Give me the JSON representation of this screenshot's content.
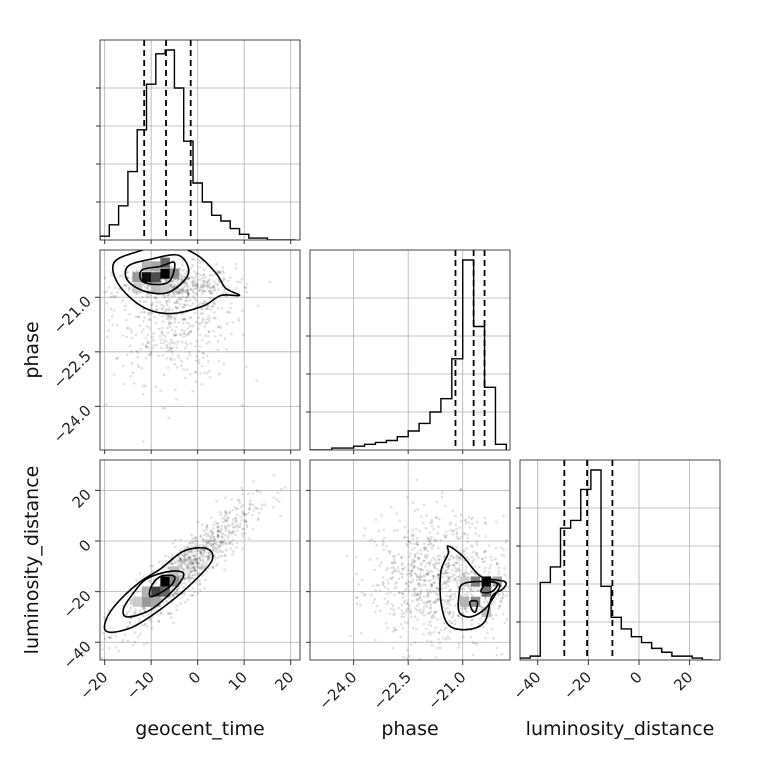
{
  "chart_data": {
    "type": "corner",
    "parameters": [
      "geocent_time",
      "phase",
      "luminosity_distance"
    ],
    "ranges": {
      "geocent_time": [
        -21,
        22
      ],
      "phase": [
        -25.2,
        -19.7
      ],
      "luminosity_distance": [
        -47,
        32
      ]
    },
    "ticks": {
      "geocent_time": {
        "values": [
          -20,
          -10,
          0,
          10,
          20
        ],
        "labels": [
          "−20",
          "−10",
          "0",
          "10",
          "20"
        ]
      },
      "phase": {
        "values": [
          -24.0,
          -22.5,
          -21.0
        ],
        "labels": [
          "−24.0",
          "−22.5",
          "−21.0"
        ]
      },
      "luminosity_distance": {
        "values": [
          -40,
          -20,
          0,
          20
        ],
        "labels": [
          "−40",
          "−20",
          "0",
          "20"
        ]
      }
    },
    "axis_labels": {
      "geocent_time": "geocent_time",
      "phase": "phase",
      "luminosity_distance": "luminosity_distance"
    },
    "histograms": {
      "geocent_time": {
        "bin_edges": [
          -21,
          -19,
          -17,
          -15,
          -13,
          -11,
          -9,
          -7,
          -5,
          -3,
          -1,
          1,
          3,
          5,
          7,
          9,
          11,
          13,
          15,
          17,
          19,
          21
        ],
        "counts": [
          2,
          8,
          18,
          36,
          58,
          82,
          98,
          100,
          80,
          52,
          30,
          20,
          13,
          10,
          6,
          3,
          1,
          1,
          0,
          0,
          0
        ],
        "quantiles": [
          -11.5,
          -6.8,
          -1.5
        ]
      },
      "phase": {
        "bin_edges": [
          -25.2,
          -24.9,
          -24.6,
          -24.3,
          -24.0,
          -23.7,
          -23.4,
          -23.1,
          -22.8,
          -22.5,
          -22.2,
          -21.9,
          -21.6,
          -21.3,
          -21.0,
          -20.7,
          -20.4,
          -20.1,
          -19.8
        ],
        "counts": [
          0,
          0,
          1,
          1,
          2,
          3,
          4,
          5,
          7,
          10,
          14,
          20,
          27,
          48,
          100,
          65,
          33,
          3
        ],
        "quantiles": [
          -21.2,
          -20.7,
          -20.4
        ]
      },
      "luminosity_distance": {
        "bin_edges": [
          -47,
          -43,
          -39,
          -35,
          -31,
          -27,
          -23,
          -19,
          -15,
          -11,
          -7,
          -3,
          1,
          5,
          9,
          13,
          17,
          21,
          25,
          29
        ],
        "counts": [
          1,
          2,
          40,
          48,
          68,
          72,
          88,
          98,
          38,
          22,
          16,
          12,
          9,
          6,
          4,
          2,
          2,
          1,
          0
        ],
        "quantiles": [
          -29.5,
          -20.5,
          -10.5
        ]
      }
    },
    "contour_panels": [
      {
        "x": "geocent_time",
        "y": "phase",
        "density_cells": [
          {
            "x": -11,
            "y": -20.45,
            "level": 0.95
          },
          {
            "x": -9,
            "y": -20.45,
            "level": 0.7
          },
          {
            "x": -7,
            "y": -20.35,
            "level": 1.0
          },
          {
            "x": -7,
            "y": -20.05,
            "level": 0.6
          },
          {
            "x": -13,
            "y": -20.45,
            "level": 0.4
          },
          {
            "x": -5,
            "y": -20.35,
            "level": 0.45
          },
          {
            "x": -9,
            "y": -20.15,
            "level": 0.35
          },
          {
            "x": -11,
            "y": -20.15,
            "level": 0.3
          },
          {
            "x": -13,
            "y": -20.75,
            "level": 0.2
          },
          {
            "x": -9,
            "y": -20.75,
            "level": 0.25
          },
          {
            "x": -7,
            "y": -20.75,
            "level": 0.2
          }
        ],
        "contours": [
          [
            [
              -18,
              -20.05
            ],
            [
              -13,
              -19.75
            ],
            [
              -6,
              -19.55
            ],
            [
              0,
              -19.85
            ],
            [
              4,
              -20.35
            ],
            [
              6,
              -20.75
            ],
            [
              9,
              -20.95
            ],
            [
              5,
              -20.95
            ],
            [
              1,
              -21.25
            ],
            [
              -6,
              -21.45
            ],
            [
              -12,
              -21.25
            ],
            [
              -17,
              -20.65
            ]
          ],
          [
            [
              -15,
              -20.15
            ],
            [
              -10,
              -19.95
            ],
            [
              -4,
              -19.85
            ],
            [
              -2,
              -20.35
            ],
            [
              -6,
              -20.85
            ],
            [
              -11,
              -20.85
            ],
            [
              -15,
              -20.55
            ]
          ],
          [
            [
              -12,
              -20.25
            ],
            [
              -8,
              -20.15
            ],
            [
              -5,
              -20.05
            ],
            [
              -6,
              -20.55
            ],
            [
              -9,
              -20.65
            ],
            [
              -12,
              -20.55
            ]
          ]
        ],
        "scatter_cloud": {
          "x_mean": -5,
          "x_sd": 6.5,
          "y_mean": -20.9,
          "y_sd": 0.75,
          "x_slope": 0.0,
          "y_tail": -24.5
        }
      },
      {
        "x": "geocent_time",
        "y": "luminosity_distance",
        "density_cells": [
          {
            "x": -7,
            "y": -16,
            "level": 1.0
          },
          {
            "x": -9,
            "y": -20,
            "level": 0.75
          },
          {
            "x": -7,
            "y": -20,
            "level": 0.6
          },
          {
            "x": -11,
            "y": -24,
            "level": 0.4
          },
          {
            "x": -9,
            "y": -24,
            "level": 0.35
          },
          {
            "x": -5,
            "y": -16,
            "level": 0.45
          },
          {
            "x": -5,
            "y": -12,
            "level": 0.25
          },
          {
            "x": -11,
            "y": -20,
            "level": 0.3
          },
          {
            "x": -13,
            "y": -24,
            "level": 0.2
          }
        ],
        "contours": [
          [
            [
              -19,
              -36
            ],
            [
              -14,
              -34
            ],
            [
              -8,
              -27
            ],
            [
              -2,
              -18
            ],
            [
              3,
              -8
            ],
            [
              2,
              -3
            ],
            [
              -3,
              -4
            ],
            [
              -8,
              -11
            ],
            [
              -13,
              -17
            ],
            [
              -18,
              -26
            ],
            [
              -20,
              -33
            ]
          ],
          [
            [
              -15,
              -30
            ],
            [
              -10,
              -27
            ],
            [
              -5,
              -19
            ],
            [
              -3,
              -13
            ],
            [
              -6,
              -12
            ],
            [
              -11,
              -15
            ],
            [
              -14,
              -21
            ],
            [
              -16,
              -27
            ]
          ],
          [
            [
              -10,
              -22
            ],
            [
              -6,
              -18
            ],
            [
              -5,
              -14
            ],
            [
              -8,
              -14
            ],
            [
              -10,
              -18
            ]
          ]
        ],
        "scatter_cloud": {
          "x_mean": -2,
          "x_sd": 7,
          "y_mean": -10,
          "y_sd": 15,
          "x_slope": 1.6,
          "y_tail": 20
        }
      },
      {
        "x": "phase",
        "y": "luminosity_distance",
        "density_cells": [
          {
            "x": -20.35,
            "y": -16,
            "level": 1.0
          },
          {
            "x": -20.65,
            "y": -16,
            "level": 0.5
          },
          {
            "x": -20.35,
            "y": -20,
            "level": 0.55
          },
          {
            "x": -20.65,
            "y": -24,
            "level": 0.45
          },
          {
            "x": -20.95,
            "y": -24,
            "level": 0.3
          },
          {
            "x": -20.05,
            "y": -16,
            "level": 0.35
          },
          {
            "x": -20.35,
            "y": -28,
            "level": 0.25
          },
          {
            "x": -20.95,
            "y": -16,
            "level": 0.2
          }
        ],
        "contours": [
          [
            [
              -21.4,
              -2
            ],
            [
              -21.0,
              -6
            ],
            [
              -20.5,
              -14
            ],
            [
              -19.85,
              -16
            ],
            [
              -19.9,
              -19
            ],
            [
              -20.2,
              -22
            ],
            [
              -20.4,
              -32
            ],
            [
              -20.9,
              -35
            ],
            [
              -21.4,
              -33
            ],
            [
              -21.6,
              -24
            ],
            [
              -21.6,
              -12
            ],
            [
              -21.4,
              -5
            ]
          ],
          [
            [
              -21.0,
              -17
            ],
            [
              -20.5,
              -16
            ],
            [
              -20.0,
              -17
            ],
            [
              -20.1,
              -21
            ],
            [
              -20.4,
              -27
            ],
            [
              -20.8,
              -30
            ],
            [
              -21.1,
              -28
            ],
            [
              -21.1,
              -21
            ]
          ],
          [
            [
              -20.8,
              -24
            ],
            [
              -20.6,
              -24
            ],
            [
              -20.65,
              -28
            ],
            [
              -20.75,
              -27
            ]
          ],
          [
            [
              -20.5,
              -20
            ],
            [
              -20.3,
              -16
            ],
            [
              -20.05,
              -17
            ],
            [
              -20.2,
              -20
            ]
          ]
        ],
        "scatter_cloud": {
          "x_mean": -21.2,
          "x_sd": 0.9,
          "y_mean": -15,
          "y_sd": 13,
          "x_slope": 0.0,
          "y_tail": 20
        }
      }
    ]
  }
}
